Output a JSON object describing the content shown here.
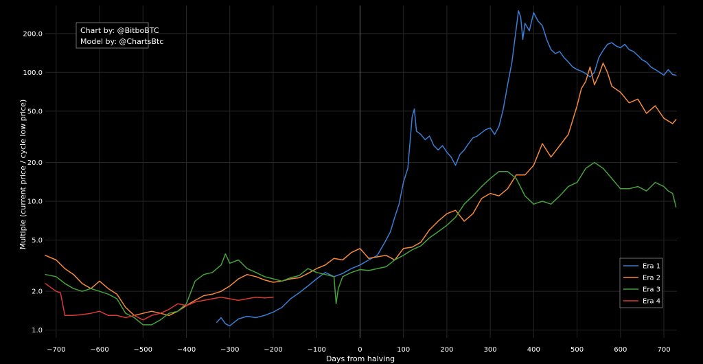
{
  "credits": [
    "Chart by: @BitboBTC",
    "Model by: @ChartsBtc"
  ],
  "chart_data": {
    "type": "line",
    "xlabel": "Days from halving",
    "ylabel": "Multiple (current price / cycle low price)",
    "yscale": "log",
    "xlim": [
      -725,
      730
    ],
    "ylim": [
      0.87,
      330
    ],
    "xticks": [
      -700,
      -600,
      -500,
      -400,
      -300,
      -200,
      -100,
      0,
      100,
      200,
      300,
      400,
      500,
      600,
      700
    ],
    "xtick_labels": [
      "−700",
      "−600",
      "−500",
      "−400",
      "−300",
      "−200",
      "−100",
      "0",
      "100",
      "200",
      "300",
      "400",
      "500",
      "600",
      "700"
    ],
    "yticks": [
      1,
      2,
      5,
      10,
      20,
      50,
      100,
      200
    ],
    "ytick_labels": [
      "1.0",
      "2.0",
      "5.0",
      "10.0",
      "20.0",
      "50.0",
      "100.0",
      "200.0"
    ],
    "grid": true,
    "legend_position": "bottom-right",
    "vline_x": 0,
    "series": [
      {
        "name": "Era 1",
        "color": "#3a7fd5",
        "x": [
          -330,
          -320,
          -310,
          -300,
          -290,
          -280,
          -260,
          -240,
          -220,
          -200,
          -180,
          -160,
          -140,
          -120,
          -100,
          -80,
          -60,
          -40,
          -20,
          0,
          20,
          40,
          60,
          70,
          80,
          90,
          100,
          110,
          115,
          120,
          125,
          130,
          140,
          150,
          160,
          170,
          180,
          190,
          200,
          210,
          220,
          230,
          240,
          250,
          260,
          270,
          280,
          290,
          300,
          310,
          320,
          330,
          340,
          350,
          360,
          365,
          370,
          375,
          380,
          390,
          400,
          410,
          420,
          430,
          440,
          450,
          460,
          470,
          480,
          490,
          500,
          510,
          520,
          530,
          540,
          550,
          560,
          570,
          580,
          590,
          600,
          610,
          620,
          630,
          640,
          650,
          660,
          670,
          680,
          690,
          700,
          710,
          720,
          728
        ],
        "values": [
          1.15,
          1.25,
          1.12,
          1.08,
          1.15,
          1.22,
          1.28,
          1.25,
          1.3,
          1.38,
          1.5,
          1.75,
          1.95,
          2.2,
          2.5,
          2.8,
          2.6,
          2.75,
          3.0,
          3.2,
          3.5,
          3.8,
          5.0,
          5.8,
          7.5,
          9.5,
          14,
          18,
          28,
          45,
          52,
          35,
          33,
          30,
          32,
          27,
          25,
          27,
          24,
          22,
          19,
          23,
          25,
          28,
          31,
          32,
          34,
          36,
          37,
          33,
          38,
          52,
          80,
          120,
          220,
          300,
          270,
          180,
          240,
          210,
          290,
          250,
          230,
          180,
          150,
          140,
          145,
          130,
          120,
          110,
          105,
          102,
          98,
          92,
          100,
          130,
          148,
          165,
          170,
          160,
          155,
          165,
          150,
          145,
          135,
          125,
          120,
          110,
          105,
          100,
          95,
          105,
          96,
          95
        ]
      },
      {
        "name": "Era 2",
        "color": "#f58a3c",
        "x": [
          -725,
          -700,
          -680,
          -660,
          -640,
          -620,
          -600,
          -580,
          -560,
          -540,
          -520,
          -500,
          -480,
          -460,
          -440,
          -420,
          -400,
          -380,
          -360,
          -340,
          -320,
          -300,
          -280,
          -260,
          -240,
          -220,
          -200,
          -180,
          -160,
          -140,
          -120,
          -100,
          -80,
          -60,
          -40,
          -20,
          0,
          20,
          40,
          60,
          80,
          100,
          120,
          140,
          160,
          180,
          200,
          220,
          240,
          260,
          280,
          300,
          320,
          340,
          360,
          380,
          400,
          420,
          440,
          460,
          480,
          500,
          510,
          520,
          530,
          540,
          550,
          560,
          570,
          580,
          600,
          620,
          640,
          660,
          680,
          700,
          720,
          728
        ],
        "values": [
          3.8,
          3.5,
          3.0,
          2.7,
          2.3,
          2.1,
          2.4,
          2.1,
          1.9,
          1.5,
          1.3,
          1.35,
          1.4,
          1.35,
          1.3,
          1.4,
          1.55,
          1.7,
          1.85,
          1.9,
          2.0,
          2.2,
          2.5,
          2.7,
          2.6,
          2.45,
          2.35,
          2.4,
          2.5,
          2.55,
          2.75,
          3.0,
          3.2,
          3.6,
          3.5,
          4.0,
          4.3,
          3.6,
          3.7,
          3.8,
          3.5,
          4.3,
          4.4,
          4.8,
          6.0,
          7.0,
          8.0,
          8.5,
          7.0,
          8.0,
          10.5,
          11.5,
          11.0,
          12.5,
          16,
          16,
          19,
          28,
          22,
          27,
          33,
          55,
          75,
          85,
          110,
          80,
          95,
          118,
          100,
          78,
          70,
          58,
          62,
          48,
          55,
          44,
          40,
          43
        ]
      },
      {
        "name": "Era 3",
        "color": "#45a33a",
        "x": [
          -725,
          -700,
          -680,
          -660,
          -640,
          -620,
          -600,
          -580,
          -560,
          -540,
          -520,
          -500,
          -480,
          -460,
          -440,
          -420,
          -400,
          -380,
          -360,
          -340,
          -320,
          -310,
          -300,
          -280,
          -260,
          -240,
          -220,
          -200,
          -180,
          -160,
          -140,
          -120,
          -100,
          -80,
          -60,
          -55,
          -50,
          -40,
          -20,
          0,
          20,
          40,
          60,
          80,
          100,
          120,
          140,
          160,
          180,
          200,
          220,
          240,
          260,
          280,
          300,
          320,
          340,
          360,
          380,
          400,
          420,
          440,
          460,
          480,
          500,
          520,
          540,
          560,
          580,
          600,
          620,
          640,
          660,
          680,
          700,
          710,
          720,
          728
        ],
        "values": [
          2.7,
          2.6,
          2.3,
          2.1,
          2.0,
          2.1,
          2.0,
          1.9,
          1.75,
          1.35,
          1.25,
          1.1,
          1.1,
          1.2,
          1.35,
          1.4,
          1.6,
          2.4,
          2.7,
          2.8,
          3.2,
          3.9,
          3.3,
          3.5,
          3.0,
          2.8,
          2.6,
          2.5,
          2.4,
          2.55,
          2.65,
          3.0,
          2.8,
          2.7,
          2.6,
          1.6,
          2.1,
          2.6,
          2.8,
          2.95,
          2.9,
          3.0,
          3.1,
          3.5,
          3.8,
          4.2,
          4.5,
          5.2,
          5.8,
          6.5,
          7.5,
          9.5,
          11,
          13,
          15,
          17,
          17,
          15,
          11,
          9.5,
          10,
          9.5,
          11,
          13,
          14,
          18,
          20,
          18,
          15,
          12.5,
          12.5,
          13,
          12,
          14,
          13,
          12,
          11.5,
          9
        ]
      },
      {
        "name": "Era 4",
        "color": "#d83a34",
        "x": [
          -725,
          -700,
          -690,
          -680,
          -660,
          -640,
          -620,
          -600,
          -580,
          -560,
          -540,
          -520,
          -500,
          -480,
          -460,
          -440,
          -420,
          -400,
          -380,
          -360,
          -340,
          -320,
          -300,
          -280,
          -260,
          -240,
          -220,
          -200
        ],
        "values": [
          2.3,
          2.0,
          1.95,
          1.3,
          1.3,
          1.32,
          1.35,
          1.4,
          1.3,
          1.3,
          1.25,
          1.3,
          1.2,
          1.3,
          1.35,
          1.45,
          1.6,
          1.55,
          1.65,
          1.7,
          1.75,
          1.8,
          1.75,
          1.7,
          1.75,
          1.8,
          1.78,
          1.8
        ]
      }
    ]
  }
}
